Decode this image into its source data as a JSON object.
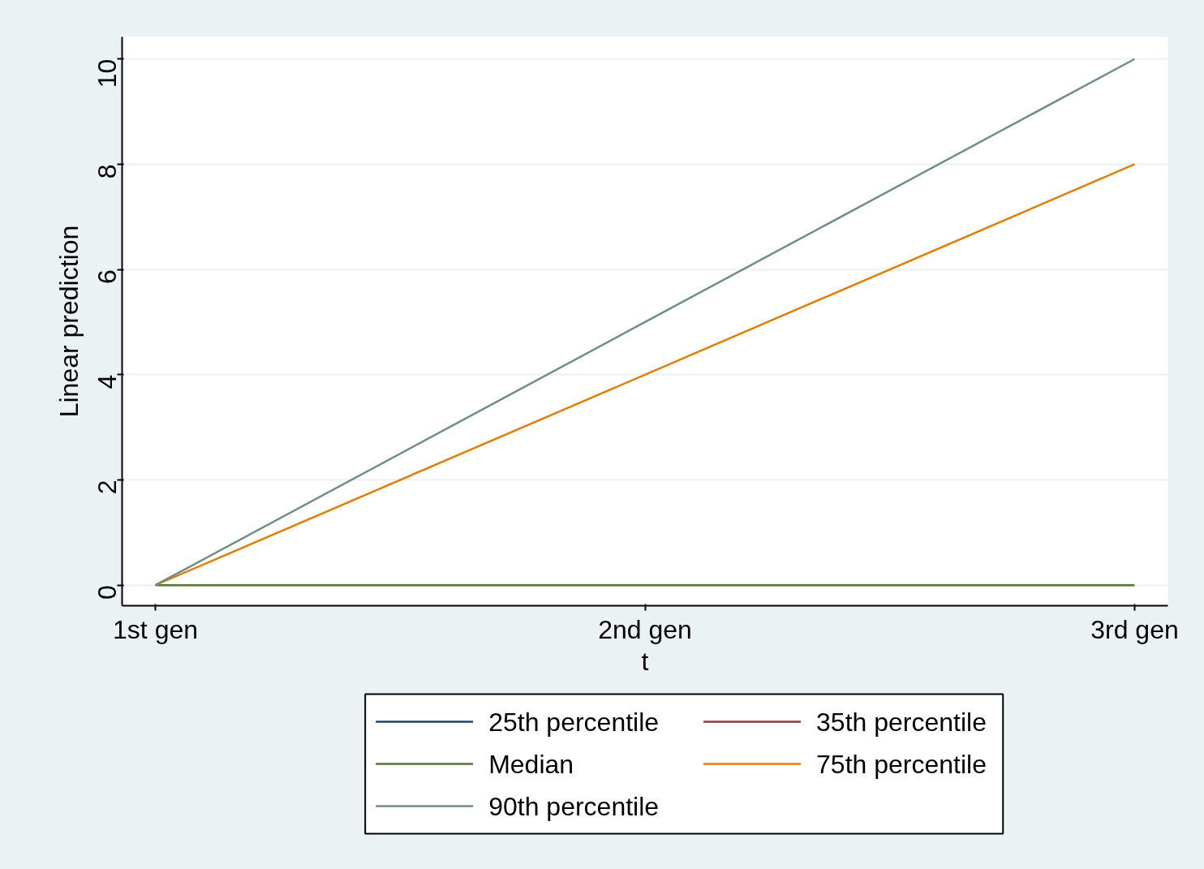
{
  "chart_data": {
    "type": "line",
    "xlabel": "t",
    "ylabel": "Linear prediction",
    "categories": [
      "1st gen",
      "2nd gen",
      "3rd gen"
    ],
    "ylim": [
      -0.39,
      10.42
    ],
    "yticks": [
      0,
      2,
      4,
      6,
      8,
      10
    ],
    "grid": "y",
    "legend": "bottom",
    "marker": "none",
    "line_style": "solid",
    "series": [
      {
        "name": "25th percentile",
        "color": "#1a476f",
        "values": [
          null,
          null,
          null
        ]
      },
      {
        "name": "35th percentile",
        "color": "#90353b",
        "values": [
          null,
          null,
          null
        ]
      },
      {
        "name": "Median",
        "color": "#55752f",
        "values": [
          0,
          0,
          0
        ]
      },
      {
        "name": "75th percentile",
        "color": "#e37e00",
        "values": [
          0,
          4,
          8
        ]
      },
      {
        "name": "90th percentile",
        "color": "#6e8e84",
        "values": [
          0,
          5,
          10
        ]
      }
    ]
  }
}
